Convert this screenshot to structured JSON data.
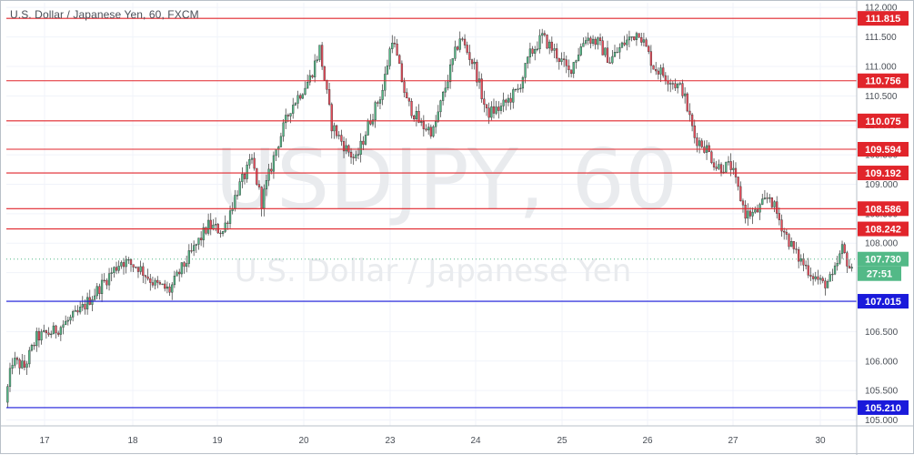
{
  "header": {
    "title": "U.S. Dollar / Japanese Yen, 60, FXCM"
  },
  "watermark": {
    "symbol": "USDJPY, 60",
    "description": "U.S. Dollar / Japanese Yen"
  },
  "countdown": "27:51",
  "colors": {
    "up": "#53b987",
    "down": "#eb4d5c",
    "resistance": "#e1252b",
    "support": "#1a1adb",
    "badge_red": "#e1252b",
    "badge_blue": "#1a1adb",
    "badge_price": "#53b987",
    "grid": "#f0f3fa",
    "axis_text": "#4a4f57"
  },
  "chart_data": {
    "type": "candlestick",
    "title": "U.S. Dollar / Japanese Yen, 60, FXCM",
    "ylim": [
      104.9,
      112.08
    ],
    "y_ticks": [
      "105.000",
      "105.500",
      "106.000",
      "106.500",
      "107.000",
      "107.500",
      "108.000",
      "108.500",
      "109.000",
      "109.500",
      "110.000",
      "110.500",
      "111.000",
      "111.500",
      "112.000"
    ],
    "x_ticks": [
      "17",
      "18",
      "19",
      "20",
      "23",
      "24",
      "25",
      "26",
      "27",
      "30"
    ],
    "grid": true,
    "horizontal_levels": [
      {
        "value": 111.815,
        "label": "111.815",
        "kind": "resistance"
      },
      {
        "value": 110.756,
        "label": "110.756",
        "kind": "resistance"
      },
      {
        "value": 110.075,
        "label": "110.075",
        "kind": "resistance"
      },
      {
        "value": 109.594,
        "label": "109.594",
        "kind": "resistance"
      },
      {
        "value": 109.192,
        "label": "109.192",
        "kind": "resistance"
      },
      {
        "value": 108.586,
        "label": "108.586",
        "kind": "resistance"
      },
      {
        "value": 108.242,
        "label": "108.242",
        "kind": "resistance"
      },
      {
        "value": 107.015,
        "label": "107.015",
        "kind": "support"
      },
      {
        "value": 105.21,
        "label": "105.210",
        "kind": "support"
      }
    ],
    "last_price": {
      "value": 107.73,
      "label": "107.730"
    },
    "path": [
      [
        0,
        105.3
      ],
      [
        3,
        106.0
      ],
      [
        8,
        105.9
      ],
      [
        13,
        106.4
      ],
      [
        20,
        106.5
      ],
      [
        30,
        106.8
      ],
      [
        40,
        107.3
      ],
      [
        48,
        107.7
      ],
      [
        55,
        107.6
      ],
      [
        62,
        107.3
      ],
      [
        68,
        107.2
      ],
      [
        72,
        107.5
      ],
      [
        78,
        107.9
      ],
      [
        84,
        108.3
      ],
      [
        90,
        108.2
      ],
      [
        96,
        108.9
      ],
      [
        102,
        109.4
      ],
      [
        106,
        108.7
      ],
      [
        112,
        109.6
      ],
      [
        118,
        110.3
      ],
      [
        126,
        110.8
      ],
      [
        130,
        111.3
      ],
      [
        135,
        110.0
      ],
      [
        141,
        109.6
      ],
      [
        145,
        109.4
      ],
      [
        150,
        110.0
      ],
      [
        156,
        110.6
      ],
      [
        160,
        111.5
      ],
      [
        166,
        110.4
      ],
      [
        172,
        110.0
      ],
      [
        177,
        109.9
      ],
      [
        183,
        110.8
      ],
      [
        188,
        111.5
      ],
      [
        194,
        111.0
      ],
      [
        199,
        110.2
      ],
      [
        205,
        110.3
      ],
      [
        212,
        110.6
      ],
      [
        217,
        111.2
      ],
      [
        222,
        111.5
      ],
      [
        228,
        111.2
      ],
      [
        233,
        110.9
      ],
      [
        240,
        111.5
      ],
      [
        245,
        111.4
      ],
      [
        250,
        111.1
      ],
      [
        256,
        111.4
      ],
      [
        262,
        111.6
      ],
      [
        268,
        111.0
      ],
      [
        274,
        110.8
      ],
      [
        280,
        110.6
      ],
      [
        285,
        109.8
      ],
      [
        290,
        109.6
      ],
      [
        294,
        109.3
      ],
      [
        300,
        109.3
      ],
      [
        306,
        108.5
      ],
      [
        310,
        108.5
      ],
      [
        316,
        108.8
      ],
      [
        322,
        108.2
      ],
      [
        327,
        107.8
      ],
      [
        333,
        107.5
      ],
      [
        338,
        107.3
      ],
      [
        342,
        107.4
      ],
      [
        346,
        107.9
      ],
      [
        350,
        107.5
      ]
    ],
    "n_candles": 350
  }
}
